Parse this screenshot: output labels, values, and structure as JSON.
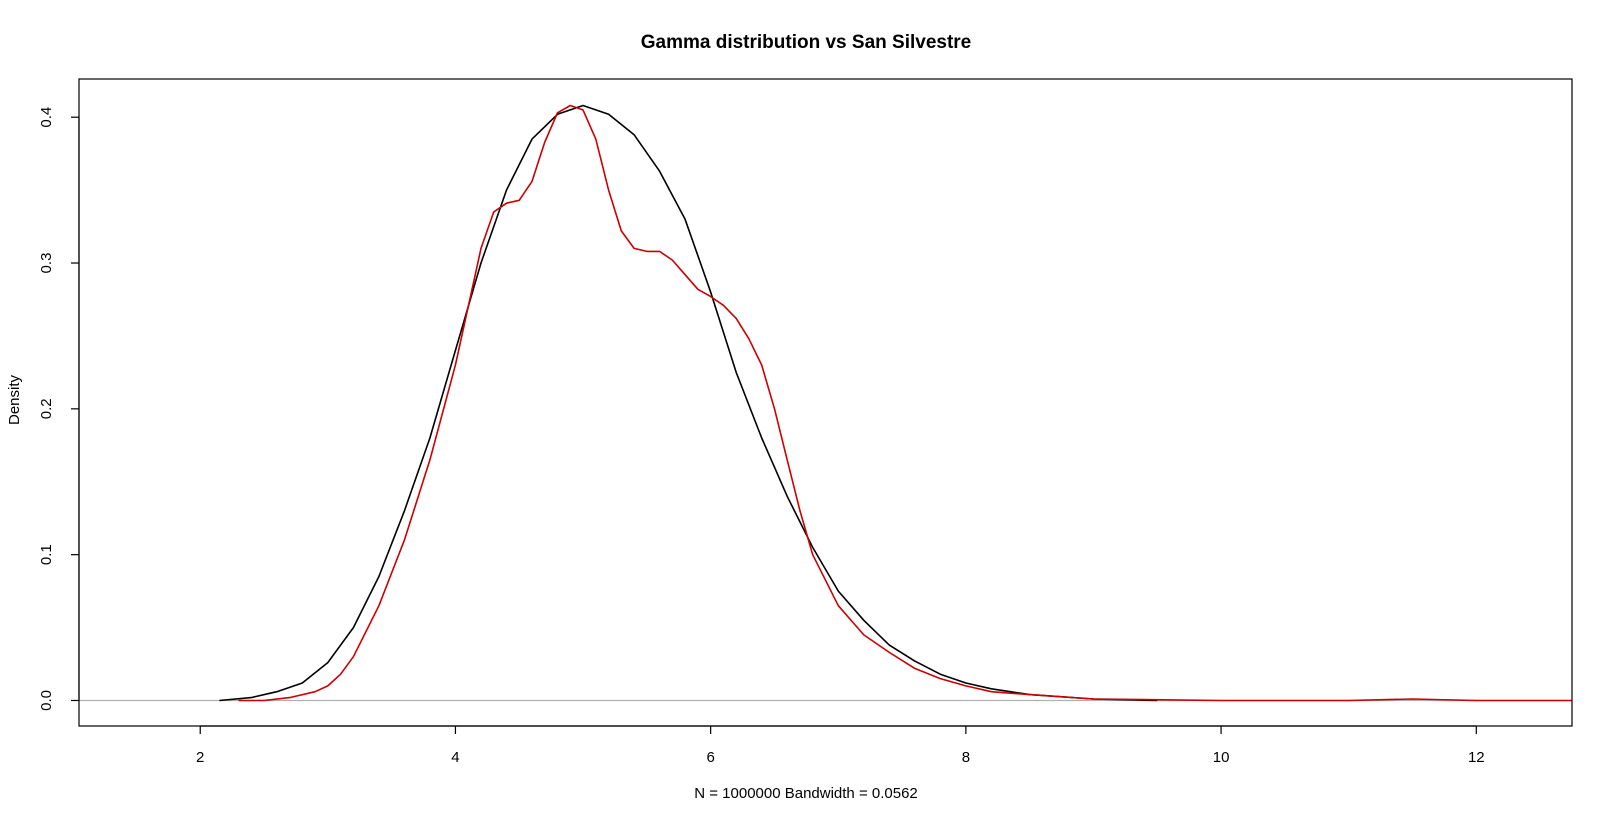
{
  "chart_data": {
    "type": "line",
    "title": "Gamma distribution vs San Silvestre",
    "xlabel": "N = 1000000   Bandwidth = 0.0562",
    "ylabel": "Density",
    "xlim": [
      1.05,
      12.75
    ],
    "ylim": [
      -0.0175,
      0.4262
    ],
    "x_ticks": [
      2,
      4,
      6,
      8,
      10,
      12
    ],
    "y_ticks": [
      0.0,
      0.1,
      0.2,
      0.3,
      0.4
    ],
    "x_tick_labels": [
      "2",
      "4",
      "6",
      "8",
      "10",
      "12"
    ],
    "y_tick_labels": [
      "0.0",
      "0.1",
      "0.2",
      "0.3",
      "0.4"
    ],
    "zero_line": true,
    "grid": false,
    "legend": "none",
    "series": [
      {
        "color": "#000000",
        "x": [
          2.15,
          2.4,
          2.6,
          2.8,
          3.0,
          3.2,
          3.4,
          3.6,
          3.8,
          4.0,
          4.2,
          4.4,
          4.6,
          4.8,
          5.0,
          5.2,
          5.4,
          5.6,
          5.8,
          6.0,
          6.2,
          6.4,
          6.6,
          6.8,
          7.0,
          7.2,
          7.4,
          7.6,
          7.8,
          8.0,
          8.2,
          8.5,
          9.0,
          9.5
        ],
        "y": [
          0.0,
          0.002,
          0.006,
          0.012,
          0.026,
          0.05,
          0.085,
          0.13,
          0.18,
          0.24,
          0.3,
          0.35,
          0.385,
          0.402,
          0.408,
          0.402,
          0.388,
          0.363,
          0.33,
          0.28,
          0.225,
          0.18,
          0.14,
          0.105,
          0.075,
          0.055,
          0.038,
          0.027,
          0.018,
          0.012,
          0.008,
          0.004,
          0.001,
          0.0
        ]
      },
      {
        "color": "#cc0000",
        "x": [
          2.3,
          2.5,
          2.7,
          2.9,
          3.0,
          3.1,
          3.2,
          3.4,
          3.6,
          3.8,
          4.0,
          4.1,
          4.2,
          4.3,
          4.4,
          4.5,
          4.6,
          4.7,
          4.8,
          4.9,
          5.0,
          5.1,
          5.2,
          5.3,
          5.4,
          5.5,
          5.6,
          5.7,
          5.8,
          5.9,
          6.0,
          6.1,
          6.2,
          6.3,
          6.4,
          6.5,
          6.6,
          6.7,
          6.8,
          7.0,
          7.2,
          7.4,
          7.6,
          7.8,
          8.0,
          8.2,
          8.5,
          9.0,
          10.0,
          11.0,
          11.5,
          12.0,
          12.5,
          12.75
        ],
        "y": [
          0.0,
          0.0,
          0.002,
          0.006,
          0.01,
          0.018,
          0.03,
          0.065,
          0.11,
          0.165,
          0.23,
          0.27,
          0.31,
          0.335,
          0.341,
          0.343,
          0.356,
          0.383,
          0.403,
          0.408,
          0.405,
          0.385,
          0.35,
          0.322,
          0.31,
          0.308,
          0.308,
          0.302,
          0.292,
          0.282,
          0.277,
          0.271,
          0.262,
          0.248,
          0.23,
          0.2,
          0.165,
          0.13,
          0.1,
          0.065,
          0.045,
          0.033,
          0.022,
          0.015,
          0.01,
          0.006,
          0.004,
          0.001,
          0.0,
          0.0,
          0.001,
          0.0,
          0.0,
          0.0
        ]
      }
    ]
  }
}
